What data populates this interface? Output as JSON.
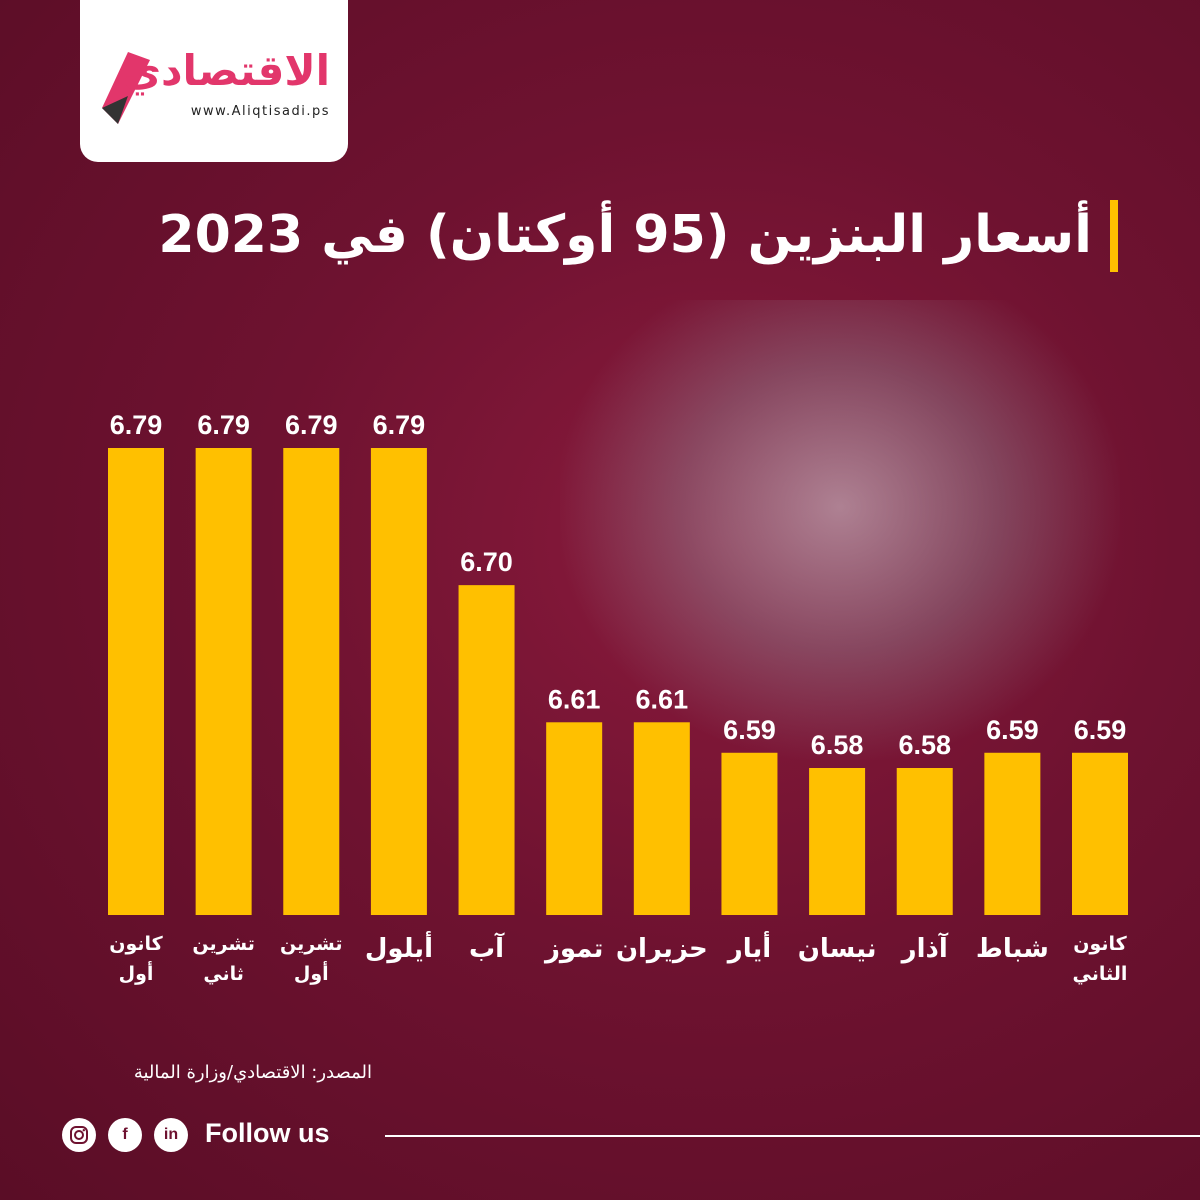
{
  "brand": {
    "name": "الاقتصادي",
    "url": "www.Aliqtisadi.ps",
    "accent_color": "#e2366b"
  },
  "title": "أسعار البنزين (95 أوكتان) في 2023",
  "colors": {
    "bar": "#ffc000",
    "background": "#6e1230",
    "text": "#ffffff"
  },
  "chart_data": {
    "type": "bar",
    "categories": [
      "كانون الثاني",
      "شباط",
      "آذار",
      "نيسان",
      "أيار",
      "حزيران",
      "تموز",
      "آب",
      "أيلول",
      "تشرين أول",
      "تشرين ثاني",
      "كانون أول"
    ],
    "category_lines": [
      [
        "كانون",
        "الثاني"
      ],
      [
        "شباط"
      ],
      [
        "آذار"
      ],
      [
        "نيسان"
      ],
      [
        "أيار"
      ],
      [
        "حزيران"
      ],
      [
        "تموز"
      ],
      [
        "آب"
      ],
      [
        "أيلول"
      ],
      [
        "تشرين",
        "أول"
      ],
      [
        "تشرين",
        "ثاني"
      ],
      [
        "كانون",
        "أول"
      ]
    ],
    "values": [
      6.59,
      6.59,
      6.58,
      6.58,
      6.59,
      6.61,
      6.61,
      6.7,
      6.79,
      6.79,
      6.79,
      6.79
    ],
    "value_labels": [
      "6.59",
      "6.59",
      "6.58",
      "6.58",
      "6.59",
      "6.61",
      "6.61",
      "6.70",
      "6.79",
      "6.79",
      "6.79",
      "6.79"
    ],
    "direction": "right-to-left",
    "grid": false,
    "legend": "none"
  },
  "source": "المصدر: الاقتصادي/وزارة المالية",
  "footer": {
    "follow_label": "Follow us",
    "icons": [
      "instagram-icon",
      "facebook-icon",
      "linkedin-icon"
    ]
  }
}
